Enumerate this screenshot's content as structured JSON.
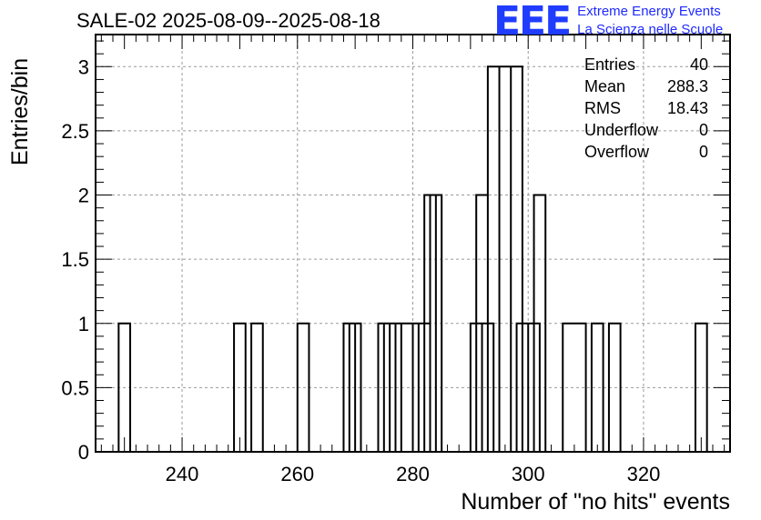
{
  "chart_data": {
    "type": "bar",
    "title": "SALE-02 2025-08-09--2025-08-18",
    "xlabel": "Number of \"no hits\" events",
    "ylabel": "Entries/bin",
    "xlim": [
      225,
      335
    ],
    "ylim": [
      0,
      3.25
    ],
    "bin_width": 2,
    "grid": true,
    "x_ticks": [
      "240",
      "260",
      "280",
      "300",
      "320"
    ],
    "y_ticks": [
      "0",
      "0.5",
      "1",
      "1.5",
      "2",
      "2.5",
      "3"
    ],
    "bins": [
      {
        "x": 229,
        "y": 1
      },
      {
        "x": 249,
        "y": 1
      },
      {
        "x": 252,
        "y": 1
      },
      {
        "x": 260,
        "y": 1
      },
      {
        "x": 268,
        "y": 1
      },
      {
        "x": 269,
        "y": 1
      },
      {
        "x": 274,
        "y": 1
      },
      {
        "x": 275,
        "y": 1
      },
      {
        "x": 276,
        "y": 1
      },
      {
        "x": 277,
        "y": 1
      },
      {
        "x": 279,
        "y": 1
      },
      {
        "x": 280,
        "y": 1
      },
      {
        "x": 281,
        "y": 1
      },
      {
        "x": 282,
        "y": 2
      },
      {
        "x": 283,
        "y": 2
      },
      {
        "x": 290,
        "y": 1
      },
      {
        "x": 291,
        "y": 2
      },
      {
        "x": 292,
        "y": 1
      },
      {
        "x": 293,
        "y": 3
      },
      {
        "x": 294,
        "y": 0
      },
      {
        "x": 295,
        "y": 3
      },
      {
        "x": 296,
        "y": 0
      },
      {
        "x": 297,
        "y": 3
      },
      {
        "x": 298,
        "y": 1
      },
      {
        "x": 299,
        "y": 1
      },
      {
        "x": 300,
        "y": 1
      },
      {
        "x": 301,
        "y": 2
      },
      {
        "x": 306,
        "y": 1
      },
      {
        "x": 308,
        "y": 1
      },
      {
        "x": 311,
        "y": 1
      },
      {
        "x": 314,
        "y": 1
      },
      {
        "x": 329,
        "y": 1
      }
    ],
    "stats": [
      {
        "label": "Entries",
        "value": "40"
      },
      {
        "label": "Mean",
        "value": "288.3"
      },
      {
        "label": "RMS",
        "value": "18.43"
      },
      {
        "label": "Underflow",
        "value": "0"
      },
      {
        "label": "Overflow",
        "value": "0"
      }
    ]
  },
  "logo": {
    "mark": "EEE",
    "line1": "Extreme Energy Events",
    "line2": "La Scienza nelle Scuole"
  }
}
